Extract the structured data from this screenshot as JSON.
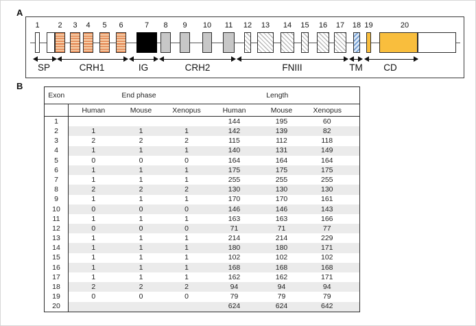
{
  "figure": {
    "panel_a_label": "A",
    "panel_b_label": "B"
  },
  "diagram": {
    "exon_numbers": [
      "1",
      "2",
      "3",
      "4",
      "5",
      "6",
      "7",
      "8",
      "9",
      "10",
      "11",
      "12",
      "13",
      "14",
      "15",
      "16",
      "17",
      "18",
      "19",
      "20"
    ],
    "domains": [
      {
        "label": "SP",
        "exons": "1-2"
      },
      {
        "label": "CRH1",
        "exons": "2-6"
      },
      {
        "label": "IG",
        "exons": "7"
      },
      {
        "label": "CRH2",
        "exons": "8-11"
      },
      {
        "label": "FNIII",
        "exons": "12-17"
      },
      {
        "label": "TM",
        "exons": "18"
      },
      {
        "label": "CD",
        "exons": "19-20"
      }
    ],
    "colors": {
      "crh1_fill": "#F6CEA8",
      "crh1_stripe": "#E2834E",
      "ig_fill": "#000000",
      "crh2_fill": "#C7C7C7",
      "fniii_hatch": "#B5B5B5",
      "tm_fill": "#DCE9F8",
      "tm_hatch": "#6F9BD1",
      "cd_fill": "#F9BE3D",
      "table_row_shade": "#EBEBEB"
    }
  },
  "table": {
    "col_exon": "Exon",
    "group_end_phase": "End phase",
    "group_length": "Length",
    "species": [
      "Human",
      "Mouse",
      "Xenopus"
    ],
    "rows": [
      {
        "exon": "1",
        "end_phase": [
          "",
          "",
          ""
        ],
        "length": [
          "144",
          "195",
          "60"
        ]
      },
      {
        "exon": "2",
        "end_phase": [
          "1",
          "1",
          "1"
        ],
        "length": [
          "142",
          "139",
          "82"
        ]
      },
      {
        "exon": "3",
        "end_phase": [
          "2",
          "2",
          "2"
        ],
        "length": [
          "115",
          "112",
          "118"
        ]
      },
      {
        "exon": "4",
        "end_phase": [
          "1",
          "1",
          "1"
        ],
        "length": [
          "140",
          "131",
          "149"
        ]
      },
      {
        "exon": "5",
        "end_phase": [
          "0",
          "0",
          "0"
        ],
        "length": [
          "164",
          "164",
          "164"
        ]
      },
      {
        "exon": "6",
        "end_phase": [
          "1",
          "1",
          "1"
        ],
        "length": [
          "175",
          "175",
          "175"
        ]
      },
      {
        "exon": "7",
        "end_phase": [
          "1",
          "1",
          "1"
        ],
        "length": [
          "255",
          "255",
          "255"
        ]
      },
      {
        "exon": "8",
        "end_phase": [
          "2",
          "2",
          "2"
        ],
        "length": [
          "130",
          "130",
          "130"
        ]
      },
      {
        "exon": "9",
        "end_phase": [
          "1",
          "1",
          "1"
        ],
        "length": [
          "170",
          "170",
          "161"
        ]
      },
      {
        "exon": "10",
        "end_phase": [
          "0",
          "0",
          "0"
        ],
        "length": [
          "146",
          "146",
          "143"
        ]
      },
      {
        "exon": "11",
        "end_phase": [
          "1",
          "1",
          "1"
        ],
        "length": [
          "163",
          "163",
          "166"
        ]
      },
      {
        "exon": "12",
        "end_phase": [
          "0",
          "0",
          "0"
        ],
        "length": [
          "71",
          "71",
          "77"
        ]
      },
      {
        "exon": "13",
        "end_phase": [
          "1",
          "1",
          "1"
        ],
        "length": [
          "214",
          "214",
          "229"
        ]
      },
      {
        "exon": "14",
        "end_phase": [
          "1",
          "1",
          "1"
        ],
        "length": [
          "180",
          "180",
          "171"
        ]
      },
      {
        "exon": "15",
        "end_phase": [
          "1",
          "1",
          "1"
        ],
        "length": [
          "102",
          "102",
          "102"
        ]
      },
      {
        "exon": "16",
        "end_phase": [
          "1",
          "1",
          "1"
        ],
        "length": [
          "168",
          "168",
          "168"
        ]
      },
      {
        "exon": "17",
        "end_phase": [
          "1",
          "1",
          "1"
        ],
        "length": [
          "162",
          "162",
          "171"
        ]
      },
      {
        "exon": "18",
        "end_phase": [
          "2",
          "2",
          "2"
        ],
        "length": [
          "94",
          "94",
          "94"
        ]
      },
      {
        "exon": "19",
        "end_phase": [
          "0",
          "0",
          "0"
        ],
        "length": [
          "79",
          "79",
          "79"
        ]
      },
      {
        "exon": "20",
        "end_phase": [
          "",
          "",
          ""
        ],
        "length": [
          "624",
          "624",
          "642"
        ]
      }
    ]
  }
}
